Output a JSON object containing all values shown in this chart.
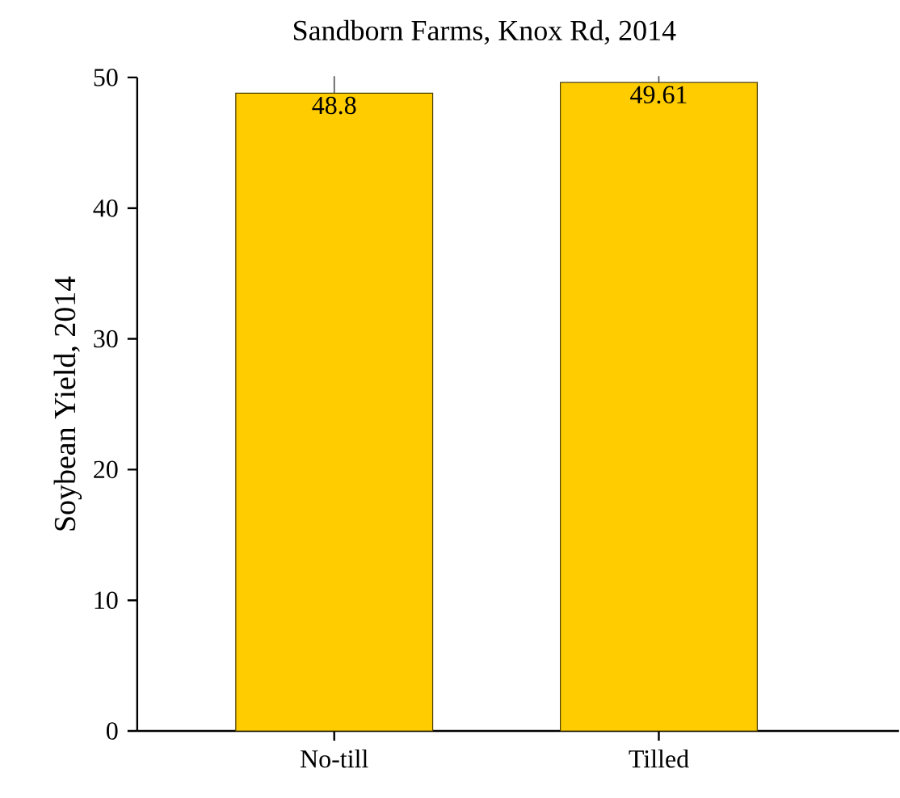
{
  "chart_data": {
    "type": "bar",
    "title": "Sandborn Farms, Knox Rd, 2014",
    "ylabel": "Soybean Yield, 2014",
    "categories": [
      "No-till",
      "Tilled"
    ],
    "values": [
      48.8,
      49.61
    ],
    "color": "#ffcc00",
    "value_labels": [
      "48.8",
      "49.61"
    ],
    "errors": [
      [
        48.8,
        50.1
      ],
      [
        49.61,
        50.1
      ]
    ],
    "ylim": [
      0,
      50
    ],
    "yticks": [
      0,
      10,
      20,
      30,
      40,
      50
    ],
    "grid": false
  }
}
